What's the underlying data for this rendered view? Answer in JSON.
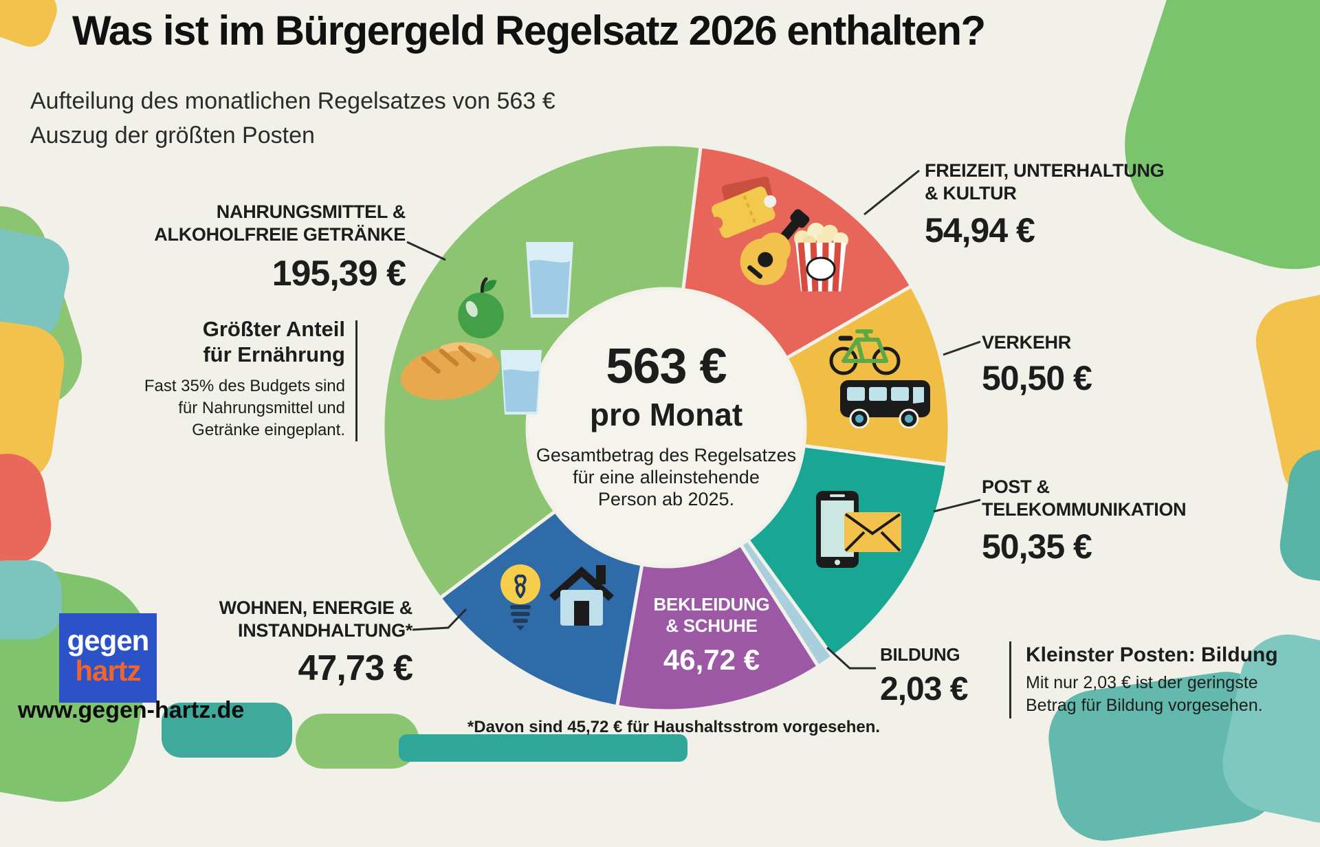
{
  "title": "Was ist im Bürgergeld Regelsatz 2026 enthalten?",
  "subtitle": {
    "line1": "Aufteilung des monatlichen Regelsatzes von 563 €",
    "line2": "Auszug der größten Posten"
  },
  "center": {
    "amount": "563 €",
    "per": "pro Monat",
    "desc1": "Gesamtbetrag des Regelsatzes",
    "desc2": "für eine alleinstehende",
    "desc3": "Person ab 2025."
  },
  "callouts": {
    "nahrung": {
      "label1": "NAHRUNGSMITTEL &",
      "label2": "ALKOHOLFREIE GETRÄNKE",
      "amount": "195,39 €",
      "note_title1": "Größter Anteil",
      "note_title2": "für Ernährung",
      "note1": "Fast 35% des Budgets sind",
      "note2": "für Nahrungsmittel und",
      "note3": "Getränke eingeplant."
    },
    "freizeit": {
      "label1": "FREIZEIT, UNTERHALTUNG",
      "label2": "& KULTUR",
      "amount": "54,94 €"
    },
    "verkehr": {
      "label": "VERKEHR",
      "amount": "50,50 €"
    },
    "post": {
      "label1": "POST &",
      "label2": "TELEKOMMUNIKATION",
      "amount": "50,35 €"
    },
    "bildung": {
      "label": "BILDUNG",
      "amount": "2,03 €",
      "note_title": "Kleinster Posten: Bildung",
      "note1": "Mit nur 2,03 € ist der geringste",
      "note2": "Betrag für Bildung vorgesehen."
    },
    "bekleidung": {
      "label1": "BEKLEIDUNG",
      "label2": "& SCHUHE",
      "amount": "46,72 €"
    },
    "wohnen": {
      "label1": "WOHNEN, ENERGIE &",
      "label2": "INSTANDHALTUNG*",
      "amount": "47,73 €"
    }
  },
  "footnote": "*Davon sind 45,72 € für Haushaltsstrom vorgesehen.",
  "branding": {
    "logo_line1": "gegen",
    "logo_line2": "hartz",
    "url": "www.gegen-hartz.de"
  },
  "colors": {
    "background": "#F1F0E9",
    "text": "#1d1d1d",
    "logo_blue": "#2B52C7",
    "logo_orange": "#F0642E"
  },
  "chart_data": {
    "type": "pie",
    "title": "Aufteilung des monatlichen Regelsatzes von 563 €",
    "total_value": 563,
    "unit": "€",
    "center_label": "563 € pro Monat",
    "segments": [
      {
        "id": "freizeit",
        "name": "Freizeit, Unterhaltung & Kultur",
        "value": 54.94,
        "display": "54,94 €",
        "color": "#E8655A",
        "a0": 7,
        "a1": 60
      },
      {
        "id": "verkehr",
        "name": "Verkehr",
        "value": 50.5,
        "display": "50,50 €",
        "color": "#F1BE45",
        "a0": 60,
        "a1": 97.5
      },
      {
        "id": "post",
        "name": "Post & Telekommunikation",
        "value": 50.35,
        "display": "50,35 €",
        "color": "#18A795",
        "a0": 97.5,
        "a1": 144
      },
      {
        "id": "bildung",
        "name": "Bildung",
        "value": 2.03,
        "display": "2,03 €",
        "color": "#A9CEDC",
        "a0": 144,
        "a1": 147.5
      },
      {
        "id": "bekleidung",
        "name": "Bekleidung & Schuhe",
        "value": 46.72,
        "display": "46,72 €",
        "color": "#9C58A5",
        "a0": 147.5,
        "a1": 190
      },
      {
        "id": "wohnen",
        "name": "Wohnen, Energie & Instandhaltung",
        "value": 47.73,
        "display": "47,73 €",
        "color": "#2E6BA8",
        "a0": 190,
        "a1": 233
      },
      {
        "id": "nahrung",
        "name": "Nahrungsmittel & alkoholfreie Getränke",
        "value": 195.39,
        "display": "195,39 €",
        "color": "#8CC471",
        "a0": 233,
        "a1": 367
      }
    ],
    "footnote": "*Davon sind 45,72 € für Haushaltsstrom vorgesehen."
  }
}
